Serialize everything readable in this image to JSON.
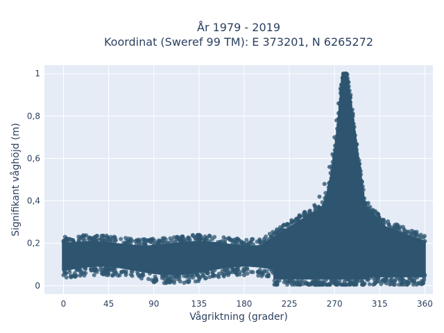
{
  "chart_data": {
    "type": "scatter",
    "title": "År 1979 - 2019",
    "subtitle": "Koordinat (Sweref 99 TM): E 373201, N 6265272",
    "xlabel": "Vågriktning (grader)",
    "ylabel": "Signifikant våghöjd (m)",
    "xlim": [
      -19,
      368
    ],
    "ylim": [
      -0.04,
      1.04
    ],
    "x_ticks": [
      0,
      45,
      90,
      135,
      180,
      225,
      270,
      315,
      360
    ],
    "x_tick_labels": [
      "0",
      "45",
      "90",
      "135",
      "180",
      "225",
      "270",
      "315",
      "360"
    ],
    "y_ticks": [
      0,
      0.2,
      0.4,
      0.6,
      0.8,
      1
    ],
    "y_tick_labels": [
      "0",
      "0,2",
      "0,4",
      "0,6",
      "0,8",
      "1"
    ],
    "grid": true,
    "marker_color": "#2e5570",
    "plot_background": "#e5ecf6",
    "series": [
      {
        "x": [
          0,
          3,
          6,
          10,
          15,
          20,
          30,
          45,
          60,
          75,
          90,
          110,
          135,
          160,
          180,
          200,
          215,
          225,
          235,
          245,
          250,
          255,
          260,
          265,
          268,
          270,
          272,
          274,
          276,
          278,
          280,
          282,
          284,
          286,
          288,
          290,
          293,
          296,
          300,
          305,
          310,
          315,
          320,
          330,
          340,
          350,
          360,
          0,
          20,
          45,
          90,
          135,
          180,
          225,
          260,
          270,
          275,
          280,
          285,
          290,
          300,
          315,
          330,
          345,
          360,
          5,
          50,
          100,
          150,
          200,
          240,
          265,
          278,
          283,
          295,
          320,
          355
        ],
        "y": [
          0.21,
          0.22,
          0.22,
          0.21,
          0.2,
          0.2,
          0.2,
          0.19,
          0.19,
          0.19,
          0.19,
          0.18,
          0.18,
          0.19,
          0.2,
          0.22,
          0.25,
          0.27,
          0.3,
          0.35,
          0.38,
          0.42,
          0.48,
          0.56,
          0.62,
          0.7,
          0.78,
          0.86,
          0.93,
          0.98,
          1.0,
          0.99,
          0.96,
          0.9,
          0.78,
          0.62,
          0.5,
          0.45,
          0.38,
          0.32,
          0.3,
          0.28,
          0.27,
          0.26,
          0.24,
          0.23,
          0.21,
          0.05,
          0.06,
          0.08,
          0.07,
          0.04,
          0.05,
          0.02,
          0.01,
          0.01,
          0.01,
          0.02,
          0.01,
          0.01,
          0.01,
          0.02,
          0.02,
          0.04,
          0.05,
          0.14,
          0.15,
          0.13,
          0.12,
          0.12,
          0.15,
          0.25,
          0.5,
          0.6,
          0.3,
          0.16,
          0.13
        ]
      }
    ]
  }
}
